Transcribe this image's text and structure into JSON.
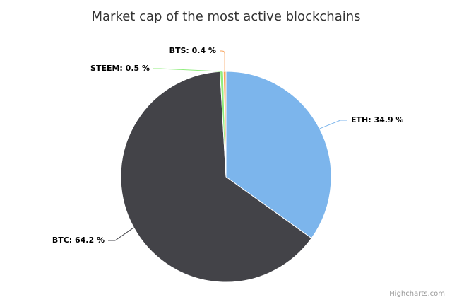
{
  "chart_data": {
    "type": "pie",
    "title": "Market cap of the most active blockchains",
    "values": [
      34.9,
      64.2,
      0.5,
      0.4
    ],
    "value_labels": [
      "ETH: 34.9 %",
      "BTC: 64.2 %",
      "STEEM: 0.5 %",
      "BTS: 0.4 %"
    ],
    "colors": [
      "#7cb5ec",
      "#434348",
      "#90ed7d",
      "#f7a35c"
    ],
    "credit": "Highcharts.com"
  }
}
